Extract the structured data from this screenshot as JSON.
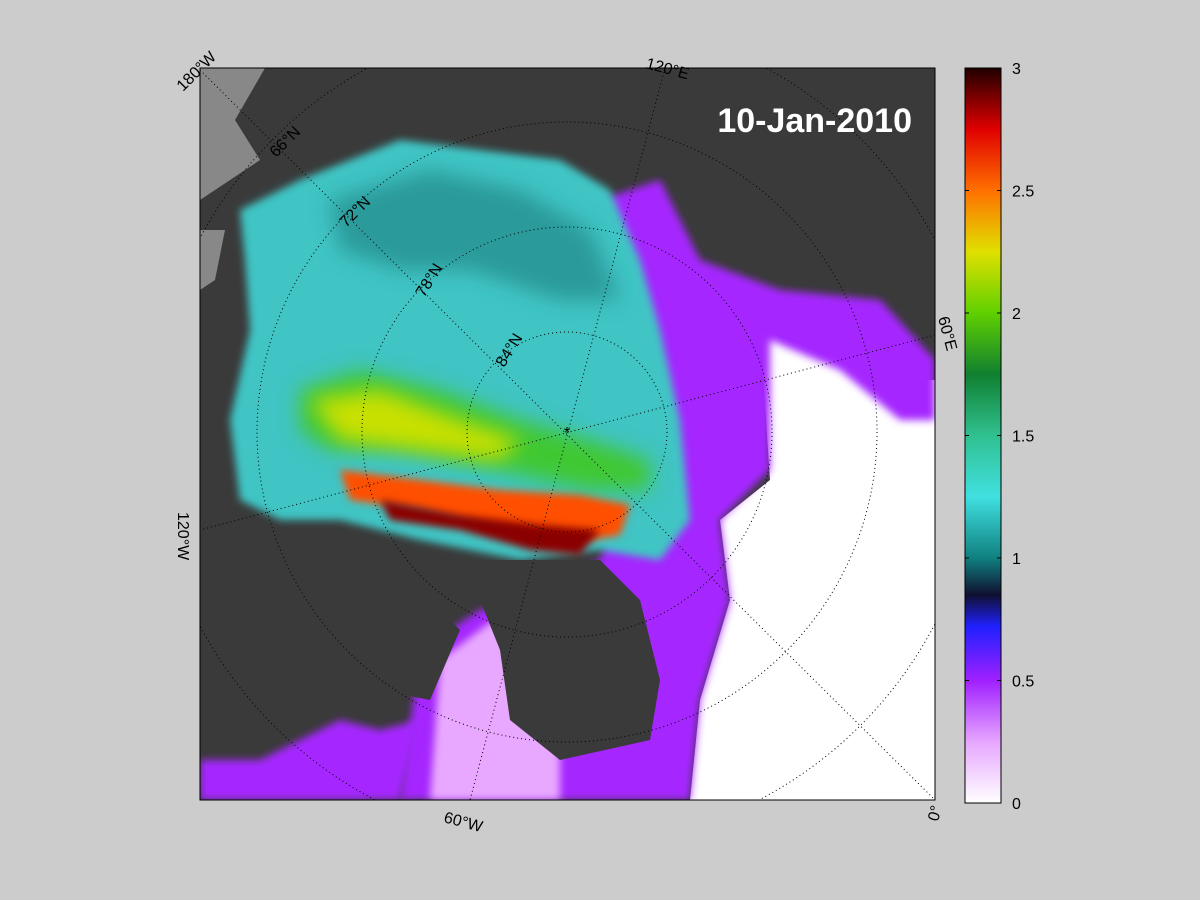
{
  "map": {
    "date_label": "10-Jan-2010",
    "longitude_labels": [
      "180°W",
      "120°E",
      "60°E",
      "120°W",
      "60°W",
      "0°"
    ],
    "latitude_labels": [
      "66°N",
      "72°N",
      "78°N",
      "84°N"
    ],
    "pole_marker": "*"
  },
  "colorbar": {
    "ticks": [
      "3",
      "2.5",
      "2",
      "1.5",
      "1",
      "0.5",
      "0"
    ],
    "min": 0,
    "max": 3,
    "stops": [
      {
        "v": 0.0,
        "c": "#ffffff"
      },
      {
        "v": 0.25,
        "c": "#e6a6ff"
      },
      {
        "v": 0.5,
        "c": "#a020ff"
      },
      {
        "v": 0.72,
        "c": "#2020ff"
      },
      {
        "v": 0.85,
        "c": "#101030"
      },
      {
        "v": 1.0,
        "c": "#108080"
      },
      {
        "v": 1.25,
        "c": "#40e0e0"
      },
      {
        "v": 1.5,
        "c": "#30c090"
      },
      {
        "v": 1.75,
        "c": "#108030"
      },
      {
        "v": 2.0,
        "c": "#60d000"
      },
      {
        "v": 2.25,
        "c": "#e0e000"
      },
      {
        "v": 2.5,
        "c": "#ff7000"
      },
      {
        "v": 2.75,
        "c": "#e00000"
      },
      {
        "v": 3.0,
        "c": "#200000"
      }
    ]
  },
  "colors": {
    "background": "#cccccc",
    "land": "#3a3a3a",
    "land_outside": "#888888",
    "open_water": "#ffffff"
  }
}
